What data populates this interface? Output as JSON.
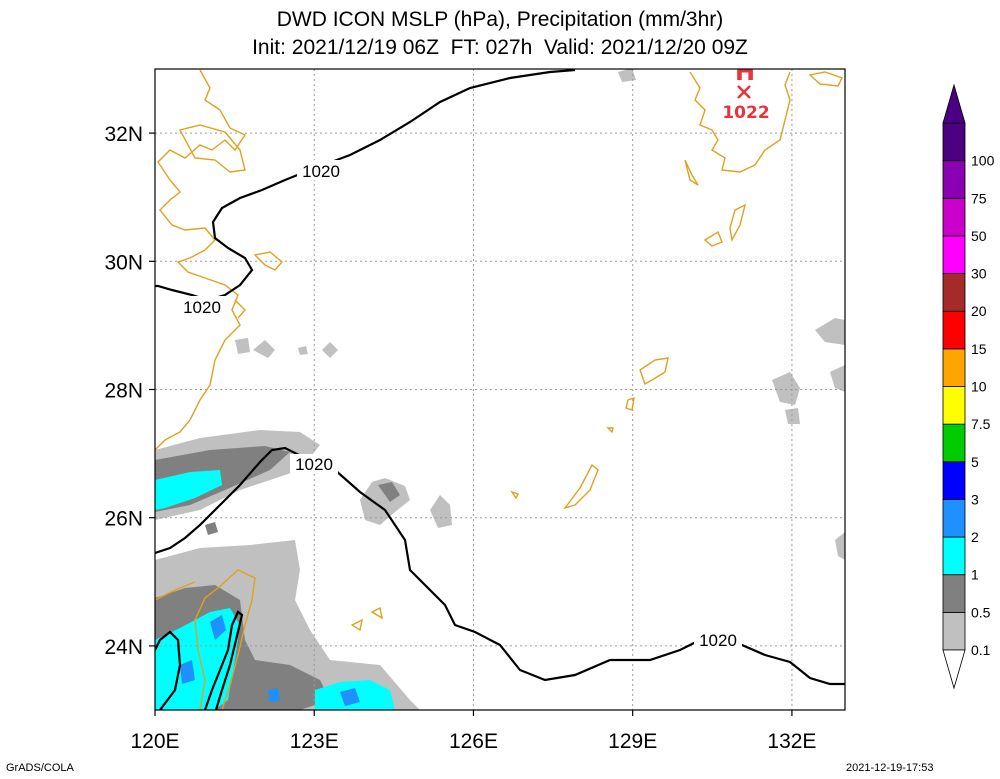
{
  "title": {
    "line1": "DWD ICON MSLP (hPa), Precipitation (mm/3hr)",
    "line2": "Init: 2021/12/19 06Z  FT: 027h  Valid: 2021/12/20 09Z"
  },
  "map": {
    "lon_range": [
      120,
      133
    ],
    "lat_range": [
      23,
      33
    ],
    "lon_ticks": [
      "120E",
      "123E",
      "126E",
      "129E",
      "132E"
    ],
    "lat_ticks": [
      "24N",
      "26N",
      "28N",
      "30N",
      "32N"
    ],
    "grid": true,
    "coastline_color": "#e0a020",
    "isobar_color": "#000000",
    "isobar_labels": [
      "1020",
      "1020",
      "1020",
      "1020"
    ],
    "high_center": {
      "marker": "H",
      "value": "1022",
      "color": "#e8343a"
    }
  },
  "colorbar": {
    "levels": [
      "0.1",
      "0.5",
      "1",
      "2",
      "3",
      "5",
      "7.5",
      "10",
      "15",
      "20",
      "30",
      "50",
      "75",
      "100"
    ],
    "colors": [
      "#c0c0c0",
      "#808080",
      "#00ffff",
      "#1e90ff",
      "#0000ff",
      "#00cc00",
      "#ffff00",
      "#ffa500",
      "#ff0000",
      "#a52a2a",
      "#ff00ff",
      "#cc00cc",
      "#8b00b0",
      "#4b0082"
    ],
    "placement": "right"
  },
  "footer": {
    "left": "GrADS/COLA",
    "right": "2021-12-19-17:53"
  }
}
